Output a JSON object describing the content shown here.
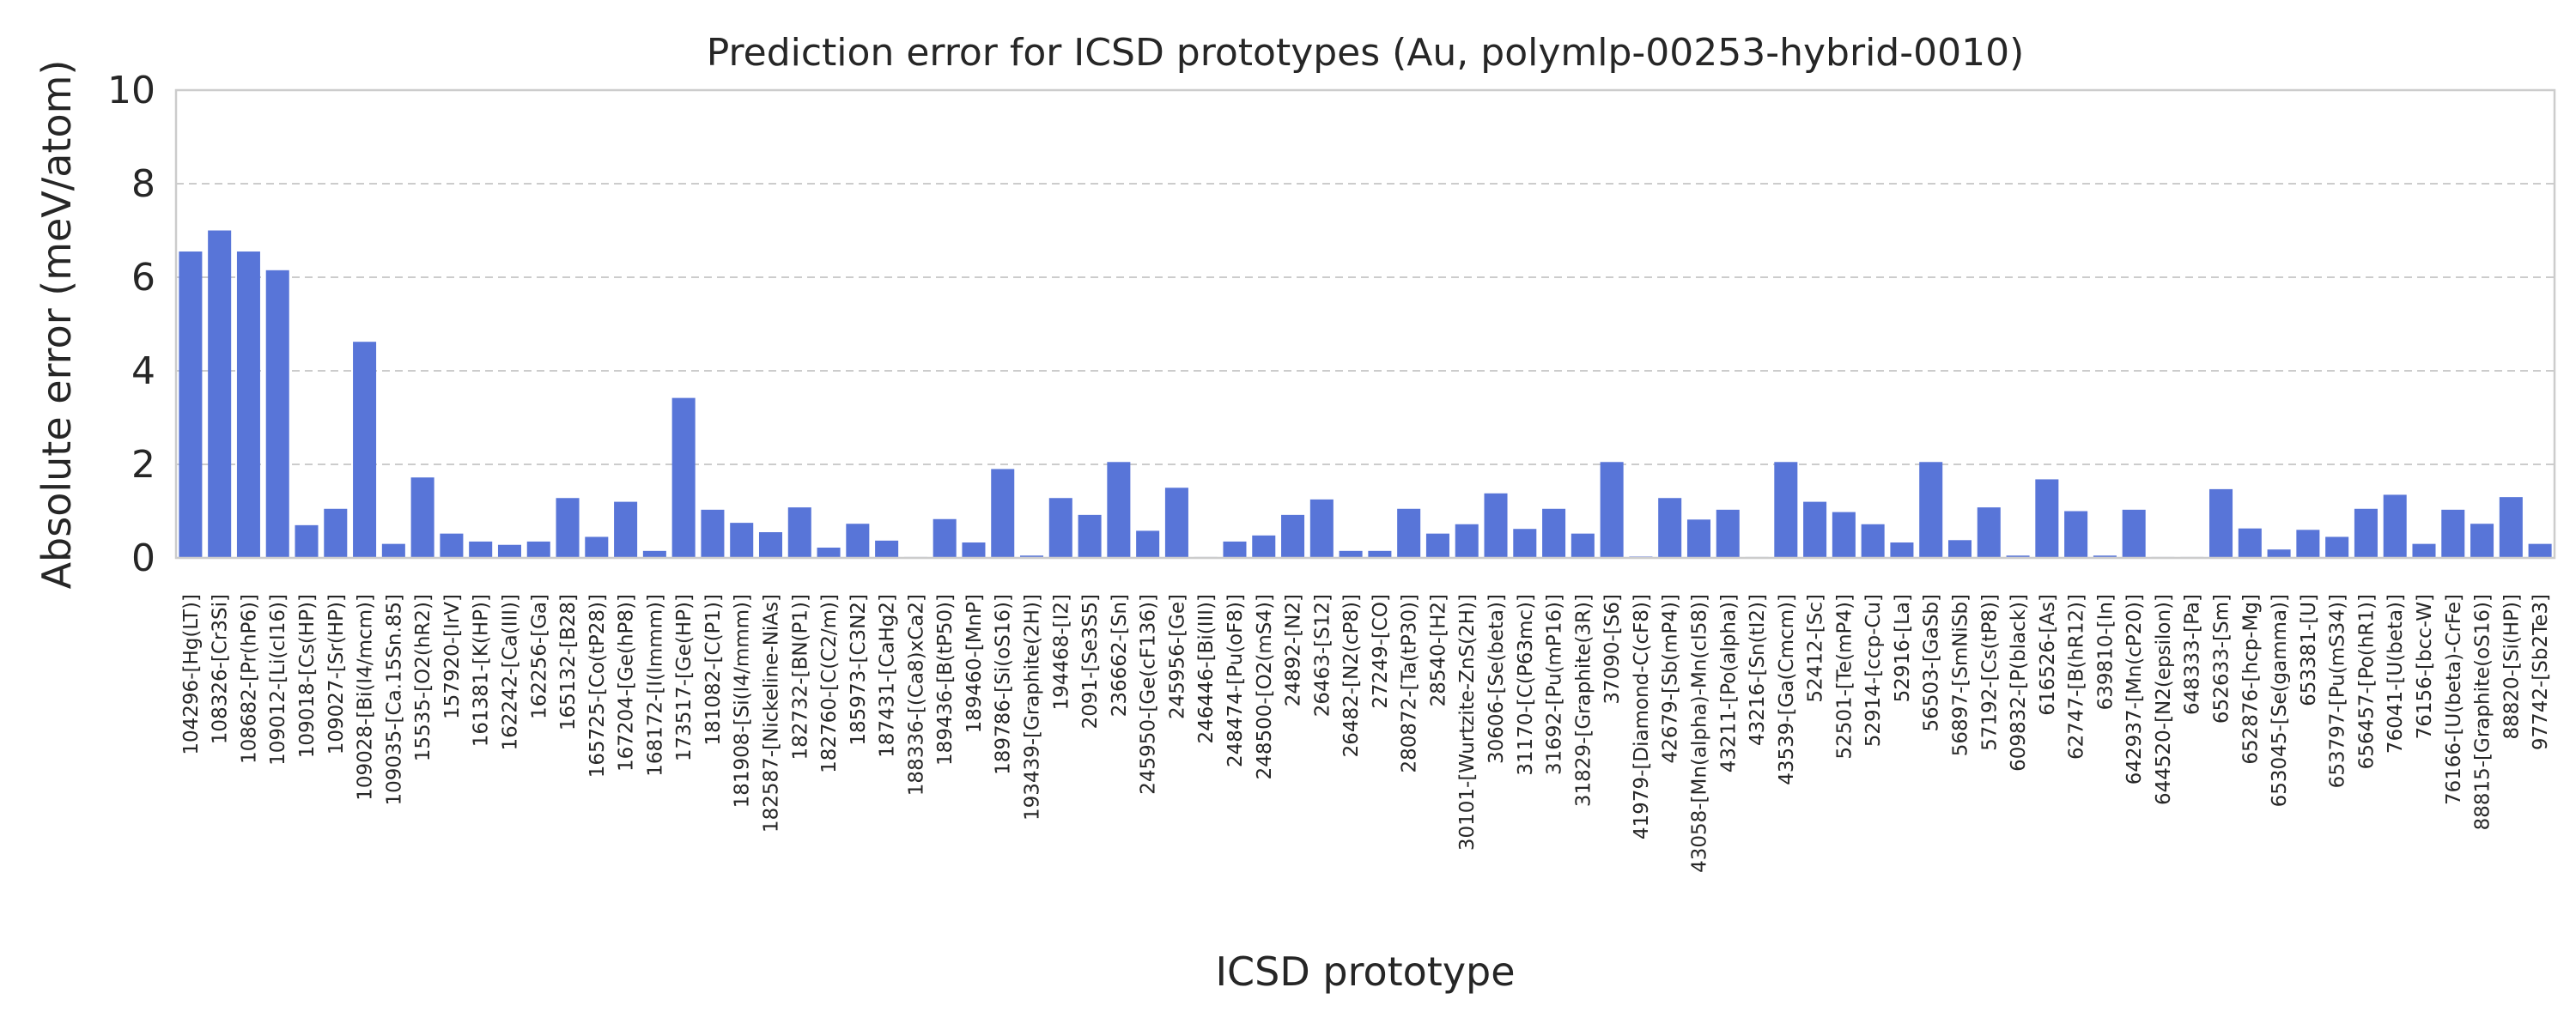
{
  "chart_data": {
    "type": "bar",
    "title": "Prediction error for ICSD prototypes (Au, polymlp-00253-hybrid-0010)",
    "xlabel": "ICSD prototype",
    "ylabel": "Absolute error (meV/atom)",
    "ylim": [
      0,
      10
    ],
    "yticks": [
      "0",
      "2",
      "4",
      "6",
      "8",
      "10"
    ],
    "grid": "horizontal dashed",
    "bar_color": "#5875d8",
    "categories": [
      "104296-[Hg(LT)]",
      "108326-[Cr3Si]",
      "108682-[Pr(hP6)]",
      "109012-[Li(cI16)]",
      "109018-[Cs(HP)]",
      "109027-[Sr(HP)]",
      "109028-[Bi(I4/mcm)]",
      "109035-[Ca.15Sn.85]",
      "15535-[O2(hR2)]",
      "157920-[IrV]",
      "161381-[K(HP)]",
      "162242-[Ca(III)]",
      "162256-[Ga]",
      "165132-[B28]",
      "165725-[Co(tP28)]",
      "167204-[Ge(hP8)]",
      "168172-[I(Immm)]",
      "173517-[Ge(HP)]",
      "181082-[C(P1)]",
      "181908-[Si(I4/mmm)]",
      "182587-[Nickeline-NiAs]",
      "182732-[BN(P1)]",
      "182760-[C(C2/m)]",
      "185973-[C3N2]",
      "187431-[CaHg2]",
      "188336-[(Ca8)xCa2]",
      "189436-[B(tP50)]",
      "189460-[MnP]",
      "189786-[Si(oS16)]",
      "193439-[Graphite(2H)]",
      "194468-[I2]",
      "2091-[Se3S5]",
      "236662-[Sn]",
      "245950-[Ge(cF136)]",
      "245956-[Ge]",
      "246446-[Bi(III)]",
      "248474-[Pu(oF8)]",
      "248500-[O2(mS4)]",
      "24892-[N2]",
      "26463-[S12]",
      "26482-[N2(cP8)]",
      "27249-[CO]",
      "280872-[Ta(tP30)]",
      "28540-[H2]",
      "30101-[Wurtzite-ZnS(2H)]",
      "30606-[Se(beta)]",
      "31170-[C(P63mc)]",
      "31692-[Pu(mP16)]",
      "31829-[Graphite(3R)]",
      "37090-[S6]",
      "41979-[Diamond-C(cF8)]",
      "42679-[Sb(mP4)]",
      "43058-[Mn(alpha)-Mn(cI58)]",
      "43211-[Po(alpha)]",
      "43216-[Sn(tI2)]",
      "43539-[Ga(Cmcm)]",
      "52412-[Sc]",
      "52501-[Te(mP4)]",
      "52914-[ccp-Cu]",
      "52916-[La]",
      "56503-[GaSb]",
      "56897-[SmNiSb]",
      "57192-[Cs(tP8)]",
      "609832-[P(black)]",
      "616526-[As]",
      "62747-[B(hR12)]",
      "639810-[In]",
      "642937-[Mn(cP20)]",
      "644520-[N2(epsilon)]",
      "648333-[Pa]",
      "652633-[Sm]",
      "652876-[hcp-Mg]",
      "653045-[Se(gamma)]",
      "653381-[U]",
      "653797-[Pu(mS34)]",
      "656457-[Po(hR1)]",
      "76041-[U(beta)]",
      "76156-[bcc-W]",
      "76166-[U(beta)-CrFe]",
      "88815-[Graphite(oS16)]",
      "88820-[Si(HP)]",
      "97742-[Sb2Te3]"
    ],
    "values": [
      6.55,
      7.0,
      6.55,
      6.15,
      0.7,
      1.05,
      4.62,
      0.3,
      1.72,
      0.52,
      0.35,
      0.28,
      0.35,
      1.28,
      0.45,
      1.2,
      0.15,
      3.42,
      1.03,
      0.75,
      0.55,
      1.08,
      0.22,
      0.73,
      0.37,
      0.02,
      0.83,
      0.33,
      1.9,
      0.05,
      1.28,
      0.92,
      2.05,
      0.58,
      1.5,
      0.02,
      0.35,
      0.48,
      0.92,
      1.25,
      0.15,
      0.15,
      1.05,
      0.52,
      0.72,
      1.38,
      0.62,
      1.05,
      0.52,
      2.05,
      0.03,
      1.28,
      0.82,
      1.03,
      0.02,
      2.05,
      1.2,
      0.98,
      0.72,
      0.33,
      2.05,
      0.38,
      1.08,
      0.05,
      1.68,
      1.0,
      0.05,
      1.03,
      0.02,
      0.02,
      1.47,
      0.63,
      0.18,
      0.6,
      0.45,
      1.05,
      1.35,
      0.3,
      1.03,
      0.73,
      1.3,
      0.3
    ]
  }
}
